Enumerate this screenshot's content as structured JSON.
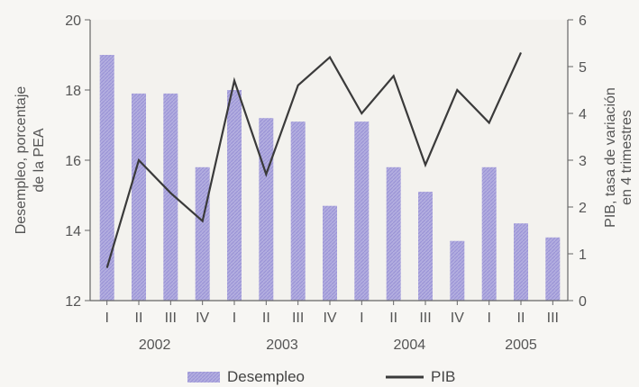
{
  "chart_data": {
    "type": "bar",
    "categories": [
      "I",
      "II",
      "III",
      "IV",
      "I",
      "II",
      "III",
      "IV",
      "I",
      "II",
      "III",
      "IV",
      "I",
      "II",
      "III"
    ],
    "years": [
      "2002",
      "2003",
      "2004",
      "2005"
    ],
    "series": [
      {
        "name": "Desempleo",
        "type": "bar",
        "axis": "left",
        "values": [
          19.0,
          17.9,
          17.9,
          15.8,
          18.0,
          17.2,
          17.1,
          14.7,
          17.1,
          15.8,
          15.1,
          13.7,
          15.8,
          14.2,
          13.8
        ]
      },
      {
        "name": "PIB",
        "type": "line",
        "axis": "right",
        "values": [
          0.7,
          3.0,
          2.3,
          1.7,
          4.7,
          2.7,
          4.6,
          5.2,
          4.0,
          4.8,
          2.9,
          4.5,
          3.8,
          5.3,
          null
        ]
      }
    ],
    "ylabel": "Desempleo, porcentaje de la PEA",
    "ylabel_lines": [
      "Desempleo, porcentaje",
      "de la PEA"
    ],
    "y2label": "PIB, tasa de variación en 4 trimestres",
    "y2label_lines": [
      "PIB, tasa de variación",
      "en 4 trimestres"
    ],
    "ylim": [
      12,
      20
    ],
    "yticks": [
      "12",
      "14",
      "16",
      "18",
      "20"
    ],
    "y2lim": [
      0,
      6
    ],
    "y2ticks": [
      "0",
      "1",
      "2",
      "3",
      "4",
      "5",
      "6"
    ],
    "legend_position": "bottom",
    "colors": {
      "bar": "#a9a3de",
      "line": "#3a3a3a"
    }
  }
}
